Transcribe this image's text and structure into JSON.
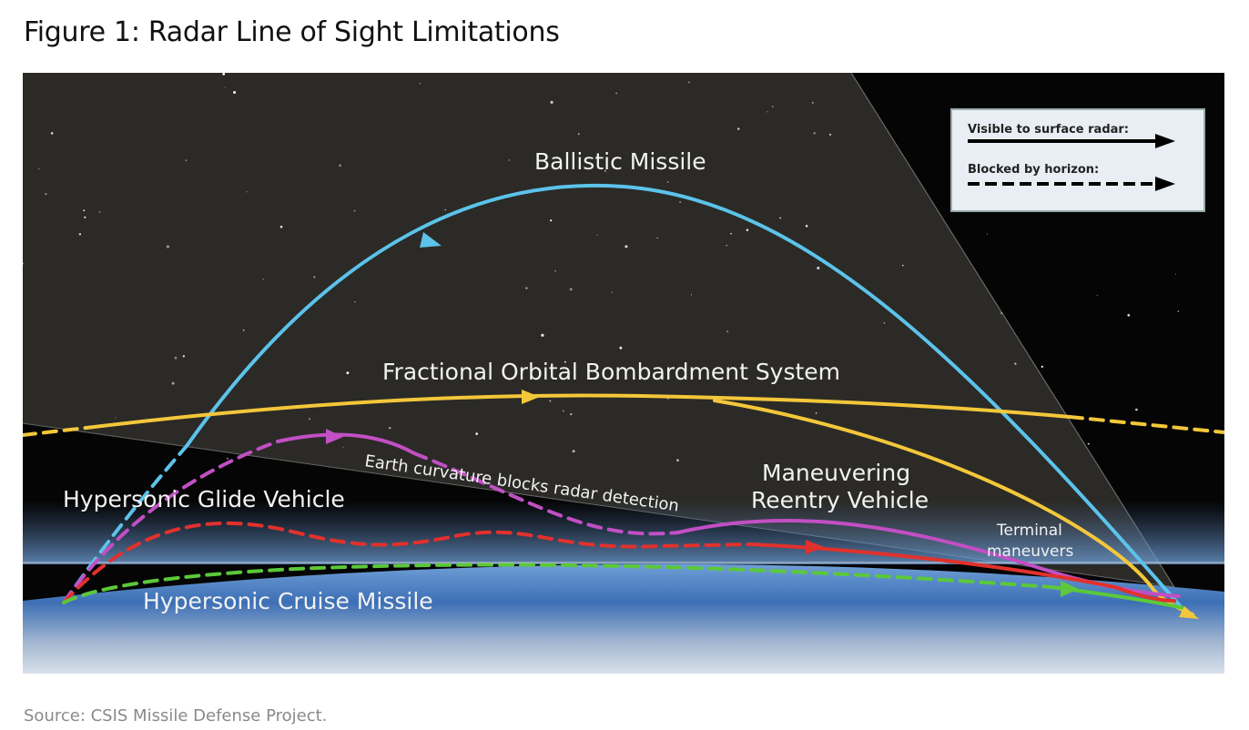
{
  "title": "Figure 1: Radar Line of Sight Limitations",
  "source": "Source: CSIS Missile Defense Project.",
  "diagram": {
    "labels": {
      "ballistic": "Ballistic Missile",
      "fobs": "Fractional Orbital Bombardment System",
      "hgv": "Hypersonic Glide Vehicle",
      "hcm": "Hypersonic Cruise Missile",
      "marv1": "Maneuvering",
      "marv2": "Reentry Vehicle",
      "curvature": "Earth curvature blocks radar detection",
      "terminal1": "Terminal",
      "terminal2": "maneuvers"
    },
    "legend": {
      "visible": "Visible to surface radar:",
      "blocked": "Blocked by horizon:"
    },
    "colors": {
      "ballistic": "#5cc3ea",
      "fobs": "#f3c73a",
      "marv": "#c24fc4",
      "hgv": "#e2312c",
      "hcm": "#5cc83a"
    }
  }
}
